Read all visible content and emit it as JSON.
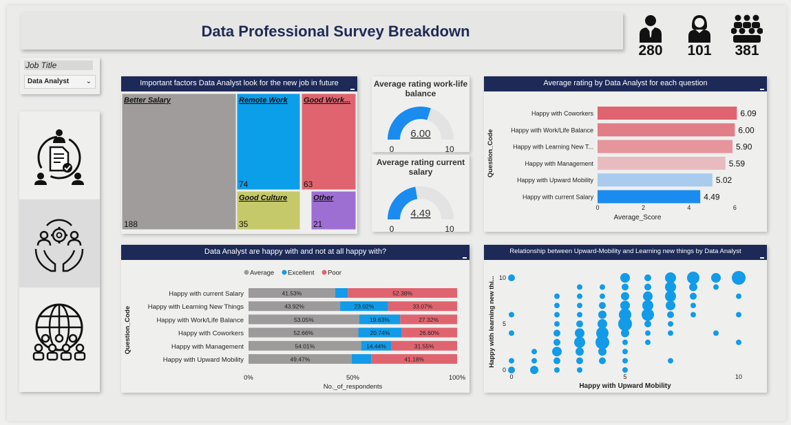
{
  "header": {
    "title": "Data Professional Survey Breakdown"
  },
  "kpis": [
    {
      "icon": "male-user-icon",
      "value": "280"
    },
    {
      "icon": "female-user-icon",
      "value": "101"
    },
    {
      "icon": "group-users-icon",
      "value": "381"
    }
  ],
  "slicer": {
    "label": "Job Title",
    "selected": "Data Analyst",
    "chevron": "⌄"
  },
  "colors": {
    "navy": "#1d2957",
    "average": "#9c9a9a",
    "excellent": "#119be8",
    "poor": "#e0646f",
    "blue_gauge": "#1a8cf0"
  },
  "treemap": {
    "title": "Important factors Data Analyst look for the new job in future",
    "items": [
      {
        "label": "Better Salary",
        "value": "188",
        "color": "#a09c9c"
      },
      {
        "label": "Remote Work",
        "value": "74",
        "color": "#0b9ee9"
      },
      {
        "label": "Good Work...",
        "value": "63",
        "color": "#e0646f"
      },
      {
        "label": "Good Culture",
        "value": "35",
        "color": "#c5c96a"
      },
      {
        "label": "Other",
        "value": "21",
        "color": "#9e6fd3"
      }
    ]
  },
  "gauge_worklife": {
    "title": "Average rating work-life balance",
    "value": 6.0,
    "value_label": "6.00",
    "min": "0",
    "max": "10"
  },
  "gauge_salary": {
    "title": "Average rating current salary",
    "value": 4.49,
    "value_label": "4.49",
    "min": "0",
    "max": "10"
  },
  "chart_data": [
    {
      "type": "bar",
      "orientation": "horizontal",
      "title": "Average rating by Data Analyst for each question",
      "xlabel": "Average_Score",
      "ylabel": "Question_Code",
      "xlim": [
        0,
        6.5
      ],
      "ticks": [
        "0",
        "2",
        "4",
        "6"
      ],
      "categories": [
        "Happy with Coworkers",
        "Happy with Work/Life Balance",
        "Happy with Learning New T...",
        "Happy with Management",
        "Happy with Upward Mobility",
        "Happy with current Salary"
      ],
      "values": [
        6.09,
        6.0,
        5.9,
        5.59,
        5.02,
        4.49
      ],
      "value_labels": [
        "6.09",
        "6.00",
        "5.90",
        "5.59",
        "5.02",
        "4.49"
      ],
      "colors": [
        "#e0646f",
        "#e07d86",
        "#e5959b",
        "#e8bcbf",
        "#a9cbee",
        "#1a8cf0"
      ]
    },
    {
      "type": "bar",
      "orientation": "horizontal-stacked-100",
      "title": "Data Analyst are happy with and not at all happy with?",
      "xlabel": "No._of_respondents",
      "ylabel": "Question_Code",
      "ticks": [
        "0%",
        "50%",
        "100%"
      ],
      "legend": [
        "Average",
        "Excellent",
        "Poor"
      ],
      "legend_placement": "top",
      "categories": [
        "Happy with current Salary",
        "Happy with Learning New Things",
        "Happy with Work/Life Balance",
        "Happy with Coworkers",
        "Happy with Management",
        "Happy with Upward Mobility"
      ],
      "series": [
        {
          "name": "Average",
          "values": [
            41.53,
            43.92,
            53.05,
            52.66,
            54.01,
            49.47
          ],
          "labels": [
            "41.53%",
            "43.92%",
            "53.05%",
            "52.66%",
            "54.01%",
            "49.47%"
          ]
        },
        {
          "name": "Excellent",
          "values": [
            6.09,
            23.02,
            19.63,
            20.74,
            14.44,
            9.35
          ],
          "labels": [
            "",
            "23.02%",
            "19.63%",
            "20.74%",
            "14.44%",
            ""
          ]
        },
        {
          "name": "Poor",
          "values": [
            52.38,
            33.07,
            27.32,
            26.6,
            31.55,
            41.18
          ],
          "labels": [
            "52.38%",
            "33.07%",
            "27.32%",
            "26.60%",
            "31.55%",
            "41.18%"
          ]
        }
      ]
    },
    {
      "type": "scatter",
      "title": "Relationship between Upward-Mobility and Learning new things by Data Analyst",
      "xlabel": "Happy with Upward Mobility",
      "ylabel": "Happy with learning new thi...",
      "xlim": [
        0,
        10
      ],
      "ylim": [
        0,
        10
      ],
      "xticks": [
        "0",
        "5",
        "10"
      ],
      "yticks": [
        "0",
        "5",
        "10"
      ],
      "points": [
        {
          "x": 0,
          "y": 10,
          "s": 3
        },
        {
          "x": 0,
          "y": 6,
          "s": 2
        },
        {
          "x": 0,
          "y": 4,
          "s": 2
        },
        {
          "x": 0,
          "y": 1,
          "s": 2
        },
        {
          "x": 0,
          "y": 0,
          "s": 3
        },
        {
          "x": 1,
          "y": 2,
          "s": 2
        },
        {
          "x": 1,
          "y": 1,
          "s": 2
        },
        {
          "x": 1,
          "y": 0,
          "s": 4
        },
        {
          "x": 2,
          "y": 8,
          "s": 2
        },
        {
          "x": 2,
          "y": 7,
          "s": 2
        },
        {
          "x": 2,
          "y": 6,
          "s": 2
        },
        {
          "x": 2,
          "y": 5,
          "s": 2
        },
        {
          "x": 2,
          "y": 4,
          "s": 3
        },
        {
          "x": 2,
          "y": 3,
          "s": 3
        },
        {
          "x": 2,
          "y": 2,
          "s": 5
        },
        {
          "x": 2,
          "y": 1,
          "s": 3
        },
        {
          "x": 2,
          "y": 0,
          "s": 2
        },
        {
          "x": 3,
          "y": 9,
          "s": 2
        },
        {
          "x": 3,
          "y": 8,
          "s": 2
        },
        {
          "x": 3,
          "y": 7,
          "s": 2
        },
        {
          "x": 3,
          "y": 6,
          "s": 2
        },
        {
          "x": 3,
          "y": 5,
          "s": 3
        },
        {
          "x": 3,
          "y": 4,
          "s": 5
        },
        {
          "x": 3,
          "y": 3,
          "s": 6
        },
        {
          "x": 3,
          "y": 2,
          "s": 4
        },
        {
          "x": 3,
          "y": 1,
          "s": 3
        },
        {
          "x": 3,
          "y": 0,
          "s": 2
        },
        {
          "x": 4,
          "y": 9,
          "s": 2
        },
        {
          "x": 4,
          "y": 8,
          "s": 2
        },
        {
          "x": 4,
          "y": 7,
          "s": 3
        },
        {
          "x": 4,
          "y": 6,
          "s": 4
        },
        {
          "x": 4,
          "y": 5,
          "s": 5
        },
        {
          "x": 4,
          "y": 4,
          "s": 7
        },
        {
          "x": 4,
          "y": 3,
          "s": 8
        },
        {
          "x": 4,
          "y": 2,
          "s": 4
        },
        {
          "x": 4,
          "y": 1,
          "s": 3
        },
        {
          "x": 5,
          "y": 10,
          "s": 5
        },
        {
          "x": 5,
          "y": 9,
          "s": 3
        },
        {
          "x": 5,
          "y": 8,
          "s": 4
        },
        {
          "x": 5,
          "y": 7,
          "s": 5
        },
        {
          "x": 5,
          "y": 6,
          "s": 7
        },
        {
          "x": 5,
          "y": 5,
          "s": 8
        },
        {
          "x": 5,
          "y": 4,
          "s": 4
        },
        {
          "x": 5,
          "y": 3,
          "s": 2
        },
        {
          "x": 5,
          "y": 2,
          "s": 2
        },
        {
          "x": 5,
          "y": 1,
          "s": 2
        },
        {
          "x": 5,
          "y": 0,
          "s": 2
        },
        {
          "x": 6,
          "y": 10,
          "s": 3
        },
        {
          "x": 6,
          "y": 9,
          "s": 3
        },
        {
          "x": 6,
          "y": 8,
          "s": 5
        },
        {
          "x": 6,
          "y": 7,
          "s": 6
        },
        {
          "x": 6,
          "y": 6,
          "s": 7
        },
        {
          "x": 6,
          "y": 5,
          "s": 3
        },
        {
          "x": 6,
          "y": 4,
          "s": 2
        },
        {
          "x": 6,
          "y": 3,
          "s": 2
        },
        {
          "x": 7,
          "y": 10,
          "s": 6
        },
        {
          "x": 7,
          "y": 9,
          "s": 6
        },
        {
          "x": 7,
          "y": 8,
          "s": 6
        },
        {
          "x": 7,
          "y": 7,
          "s": 5
        },
        {
          "x": 7,
          "y": 6,
          "s": 3
        },
        {
          "x": 7,
          "y": 5,
          "s": 2
        },
        {
          "x": 7,
          "y": 4,
          "s": 2
        },
        {
          "x": 7,
          "y": 1,
          "s": 2
        },
        {
          "x": 8,
          "y": 10,
          "s": 7
        },
        {
          "x": 8,
          "y": 9,
          "s": 4
        },
        {
          "x": 8,
          "y": 8,
          "s": 3
        },
        {
          "x": 8,
          "y": 7,
          "s": 2
        },
        {
          "x": 8,
          "y": 6,
          "s": 2
        },
        {
          "x": 9,
          "y": 10,
          "s": 5
        },
        {
          "x": 9,
          "y": 9,
          "s": 2
        },
        {
          "x": 9,
          "y": 4,
          "s": 2
        },
        {
          "x": 10,
          "y": 10,
          "s": 8
        },
        {
          "x": 10,
          "y": 8,
          "s": 2
        },
        {
          "x": 10,
          "y": 6,
          "s": 2
        },
        {
          "x": 10,
          "y": 3,
          "s": 2
        }
      ]
    }
  ]
}
